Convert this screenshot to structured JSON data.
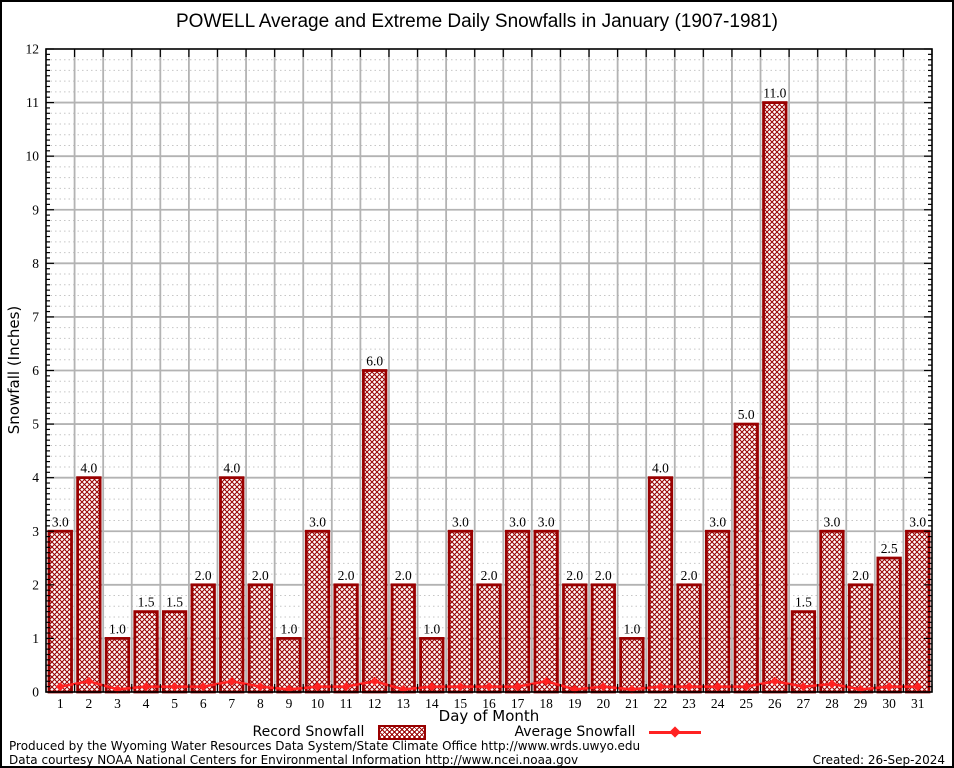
{
  "title": "POWELL Average and Extreme Daily Snowfalls in January (1907-1981)",
  "axes": {
    "ylabel": "Snowfall (Inches)",
    "xlabel": "Day of Month"
  },
  "legend": {
    "record_label": "Record Snowfall",
    "average_label": "Average Snowfall"
  },
  "footer": {
    "line1": "Produced by the Wyoming Water Resources Data System/State Climate Office http://www.wrds.uwyo.edu",
    "line2": "Data courtesy NOAA National Centers for Environmental Information http://www.ncei.noaa.gov",
    "created": "Created: 26-Sep-2024"
  },
  "colors": {
    "bar": "#990000",
    "line": "#ff2222",
    "grid_major": "#b3b3b3",
    "grid_minor": "#c6c6c6",
    "plot_border": "#000000"
  },
  "chart_data": {
    "type": "bar",
    "title": "POWELL Average and Extreme Daily Snowfalls in January (1907-1981)",
    "xlabel": "Day of Month",
    "ylabel": "Snowfall (Inches)",
    "ylim": [
      0,
      12
    ],
    "y_major_step": 1,
    "y_minor_step": 0.2,
    "grid": true,
    "legend_position": "bottom",
    "categories": [
      1,
      2,
      3,
      4,
      5,
      6,
      7,
      8,
      9,
      10,
      11,
      12,
      13,
      14,
      15,
      16,
      17,
      18,
      19,
      20,
      21,
      22,
      23,
      24,
      25,
      26,
      27,
      28,
      29,
      30,
      31
    ],
    "series": [
      {
        "name": "Record Snowfall",
        "type": "bar",
        "values": [
          3.0,
          4.0,
          1.0,
          1.5,
          1.5,
          2.0,
          4.0,
          2.0,
          1.0,
          3.0,
          2.0,
          6.0,
          2.0,
          1.0,
          3.0,
          2.0,
          3.0,
          3.0,
          2.0,
          2.0,
          1.0,
          4.0,
          2.0,
          3.0,
          5.0,
          11.0,
          1.5,
          3.0,
          2.0,
          2.5,
          3.0
        ],
        "labels_shown": true
      },
      {
        "name": "Average Snowfall",
        "type": "line",
        "values": [
          0.1,
          0.2,
          0.05,
          0.1,
          0.1,
          0.1,
          0.2,
          0.1,
          0.05,
          0.1,
          0.1,
          0.2,
          0.05,
          0.1,
          0.1,
          0.1,
          0.1,
          0.2,
          0.05,
          0.1,
          0.05,
          0.1,
          0.1,
          0.1,
          0.1,
          0.2,
          0.1,
          0.15,
          0.05,
          0.1,
          0.1
        ]
      }
    ]
  }
}
